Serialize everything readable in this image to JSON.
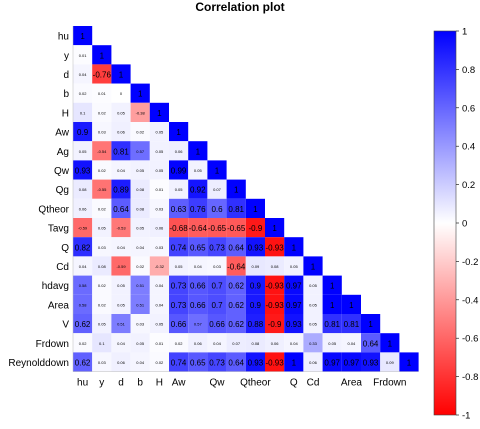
{
  "chart_data": {
    "type": "heatmap",
    "title": "Correlation plot",
    "variables": [
      "hu",
      "y",
      "d",
      "b",
      "H",
      "Aw",
      "Ag",
      "Qw",
      "Qg",
      "Qtheor",
      "Tavg",
      "Q",
      "Cd",
      "hdavg",
      "Area",
      "V",
      "Frdown",
      "Reynolddown"
    ],
    "x_tick_labels": [
      "hu",
      "y",
      "d",
      "b",
      "H",
      "Aw",
      "",
      "Qw",
      "",
      "Qtheor",
      "",
      "Q",
      "Cd",
      "",
      "Area",
      "",
      "Frdown",
      ""
    ],
    "lower_triangle": [
      [
        1
      ],
      [
        0.01,
        1
      ],
      [
        0.04,
        -0.76,
        1
      ],
      [
        0.02,
        0.01,
        0.0,
        1
      ],
      [
        0.1,
        0.02,
        0.05,
        -0.38,
        1
      ],
      [
        0.9,
        0.03,
        0.06,
        0.02,
        0.05,
        1
      ],
      [
        0.05,
        -0.54,
        0.81,
        0.57,
        0.05,
        0.06,
        1
      ],
      [
        0.93,
        0.02,
        0.04,
        0.05,
        0.05,
        0.99,
        0.05,
        1
      ],
      [
        0.08,
        -0.55,
        0.89,
        0.08,
        0.01,
        0.05,
        0.92,
        0.07,
        1
      ],
      [
        0.06,
        0.02,
        0.64,
        0.08,
        0.03,
        0.63,
        0.76,
        0.6,
        0.81,
        1
      ],
      [
        -0.59,
        0.05,
        -0.53,
        0.05,
        0.06,
        -0.68,
        -0.64,
        -0.65,
        -0.65,
        -0.9,
        1
      ],
      [
        0.82,
        0.03,
        0.04,
        0.04,
        0.03,
        0.74,
        0.65,
        0.73,
        0.64,
        0.93,
        -0.93,
        1
      ],
      [
        0.04,
        0.08,
        -0.59,
        0.02,
        -0.32,
        0.05,
        0.04,
        0.03,
        -0.64,
        0.09,
        0.08,
        0.05,
        1
      ],
      [
        0.58,
        0.02,
        0.05,
        0.51,
        0.04,
        0.73,
        0.66,
        0.7,
        0.62,
        0.9,
        -0.93,
        0.97,
        0.05,
        1
      ],
      [
        0.58,
        0.02,
        0.05,
        0.51,
        0.04,
        0.73,
        0.66,
        0.7,
        0.62,
        0.9,
        -0.93,
        0.97,
        0.05,
        1,
        1
      ],
      [
        0.62,
        0.05,
        0.51,
        0.03,
        0.05,
        0.66,
        0.57,
        0.66,
        0.62,
        0.88,
        -0.9,
        0.93,
        0.05,
        0.81,
        0.81,
        1
      ],
      [
        0.02,
        0.1,
        0.04,
        0.05,
        0.01,
        0.02,
        0.06,
        0.04,
        0.07,
        0.08,
        0.06,
        0.04,
        0.33,
        0.05,
        0.04,
        0.64,
        1
      ],
      [
        0.62,
        0.03,
        0.06,
        0.04,
        0.02,
        0.74,
        0.65,
        0.73,
        0.64,
        0.93,
        -0.93,
        1,
        0.06,
        0.97,
        0.97,
        0.93,
        0.09,
        1
      ]
    ],
    "legend": {
      "position": "right",
      "colors": [
        "#ff0000",
        "#ffffff",
        "#0000ff"
      ],
      "ticks": [
        "1",
        "0.8",
        "0.6",
        "0.4",
        "0.2",
        "0",
        "-0.2",
        "-0.4",
        "-0.6",
        "-0.8",
        "-1"
      ],
      "range": [
        -1,
        1
      ]
    }
  }
}
